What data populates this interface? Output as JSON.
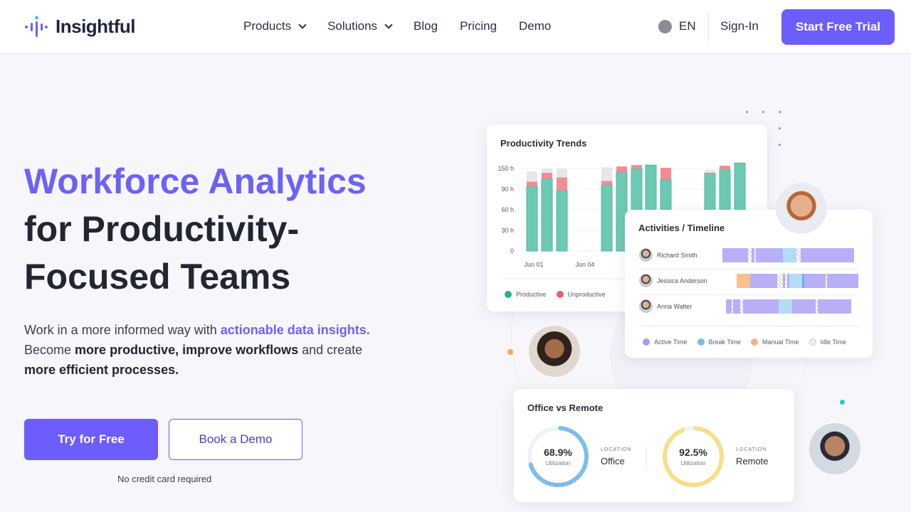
{
  "header": {
    "brand": "Insightful",
    "nav": [
      {
        "label": "Products",
        "dropdown": true
      },
      {
        "label": "Solutions",
        "dropdown": true
      },
      {
        "label": "Blog"
      },
      {
        "label": "Pricing"
      },
      {
        "label": "Demo"
      }
    ],
    "language": "EN",
    "sign_in": "Sign-In",
    "cta": "Start Free Trial"
  },
  "hero": {
    "title_accent": "Workforce Analytics",
    "title_rest_1": "for Productivity-",
    "title_rest_2": "Focused Teams",
    "lead_1": "Work in a more informed way with ",
    "lead_hl": "actionable data insights.",
    "lead_2": "Become ",
    "lead_b1": "more productive, improve workflows",
    "lead_3": " and create ",
    "lead_b2": "more efficient processes.",
    "primary": "Try for Free",
    "secondary": "Book a Demo",
    "note": "No credit card required"
  },
  "colors": {
    "brand": "#6d5dfc",
    "productive": "#6ccab4",
    "unproductive": "#f28b94",
    "idle": "#e6e7ea",
    "active": "#b7b0f7",
    "break": "#b4dcf3",
    "manual": "#f9c08e"
  },
  "chart_data": {
    "type": "bar",
    "stacked": true,
    "title": "Productivity Trends",
    "yticks": [
      "0",
      "30 h",
      "60 h",
      "90 h",
      "150 h"
    ],
    "xtick_labels": [
      "Jun 01",
      "Jun 04"
    ],
    "series": [
      {
        "name": "Productive",
        "values": [
          94,
          105,
          88,
          96,
          115,
          120,
          125,
          104,
          113,
          118,
          128
        ]
      },
      {
        "name": "Unproductive",
        "values": [
          7,
          9,
          19,
          6,
          8,
          5,
          0,
          17,
          1,
          6,
          0
        ]
      },
      {
        "name": "Idle",
        "values": [
          15,
          6,
          13,
          20,
          0,
          0,
          0,
          0,
          4,
          0,
          0
        ]
      }
    ]
  },
  "timeline": {
    "title": "Activities / Timeline",
    "rows": [
      {
        "name": "Richard Smith",
        "segments": [
          [
            "active",
            7,
            24
          ],
          [
            "idle",
            24,
            26.5
          ],
          [
            "active",
            26.5,
            28.5
          ],
          [
            "idle",
            28.5,
            29.5
          ],
          [
            "active",
            29.5,
            48
          ],
          [
            "break",
            48,
            57
          ],
          [
            "idle",
            57,
            60
          ],
          [
            "active",
            60,
            96
          ]
        ]
      },
      {
        "name": "Jessica Anderson",
        "segments": [
          [
            "manual",
            16.5,
            25.5
          ],
          [
            "active",
            25.5,
            44
          ],
          [
            "idle",
            44,
            48
          ],
          [
            "active",
            48,
            49.5
          ],
          [
            "idle",
            49.5,
            50.5
          ],
          [
            "active",
            50.5,
            52
          ],
          [
            "break",
            52,
            61
          ],
          [
            "breakdark",
            61,
            62.5
          ],
          [
            "active",
            62.5,
            77
          ],
          [
            "idle",
            77,
            78
          ],
          [
            "active",
            78,
            99
          ]
        ]
      },
      {
        "name": "Anna Walter",
        "segments": [
          [
            "active",
            9,
            13
          ],
          [
            "idle",
            13,
            14
          ],
          [
            "active",
            14,
            19
          ],
          [
            "idle",
            19,
            21
          ],
          [
            "active",
            21,
            45
          ],
          [
            "break",
            45,
            54
          ],
          [
            "active",
            54,
            70
          ],
          [
            "idle",
            70,
            71.5
          ],
          [
            "active",
            71.5,
            94
          ]
        ]
      }
    ],
    "legend": [
      "Active Time",
      "Break Time",
      "Manual Time",
      "Idle Time"
    ]
  },
  "office_remote": {
    "title": "Office vs Remote",
    "items": [
      {
        "value": 68.9,
        "label": "68.9%",
        "sub": "Utilization",
        "loc_label": "LOCATION",
        "loc": "Office",
        "color": "#7dbdea"
      },
      {
        "value": 92.5,
        "label": "92.5%",
        "sub": "Utilization",
        "loc_label": "LOCATION",
        "loc": "Remote",
        "color": "#f8de8a"
      }
    ]
  }
}
